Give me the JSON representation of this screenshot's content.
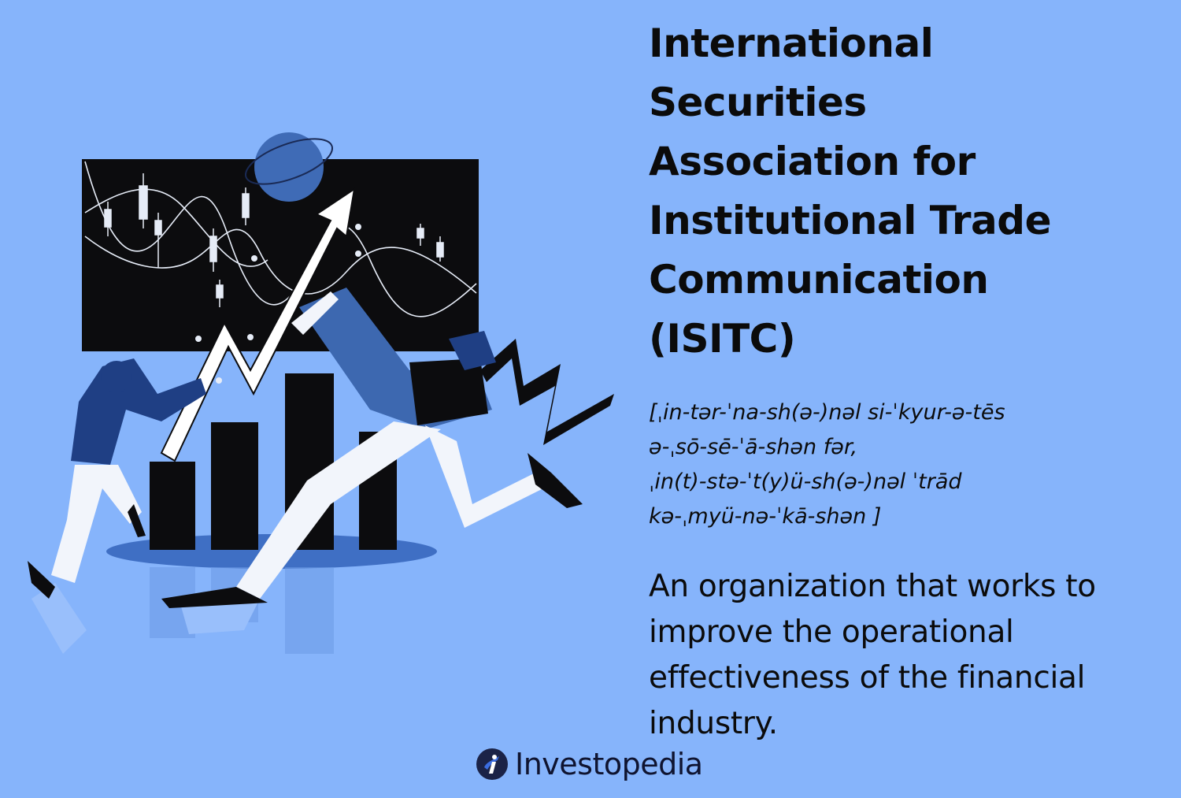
{
  "term": {
    "title": "International\nSecurities\nAssociation for\nInstitutional Trade\nCommunication\n(ISITC)",
    "pronunciation": "[ˌin-tər-ˈna-sh(ə-)nəl si-ˈkyur-ə-tēs\nə-ˌsō-sē-ˈā-shən fər,\nˌin(t)-stə-ˈt(y)ü-sh(ə-)nəl ˈtrād\nkə-ˌmyü-nə-ˈkā-shən ]",
    "definition": "An organization that works to improve the operational effectiveness of the financial industry."
  },
  "brand": {
    "name": "Investopedia",
    "icon": "investopedia-logo-icon"
  },
  "colors": {
    "background": "#86b4fb",
    "accent_blue": "#3d68b0",
    "dark": "#0b0b0b",
    "white": "#ffffff"
  }
}
